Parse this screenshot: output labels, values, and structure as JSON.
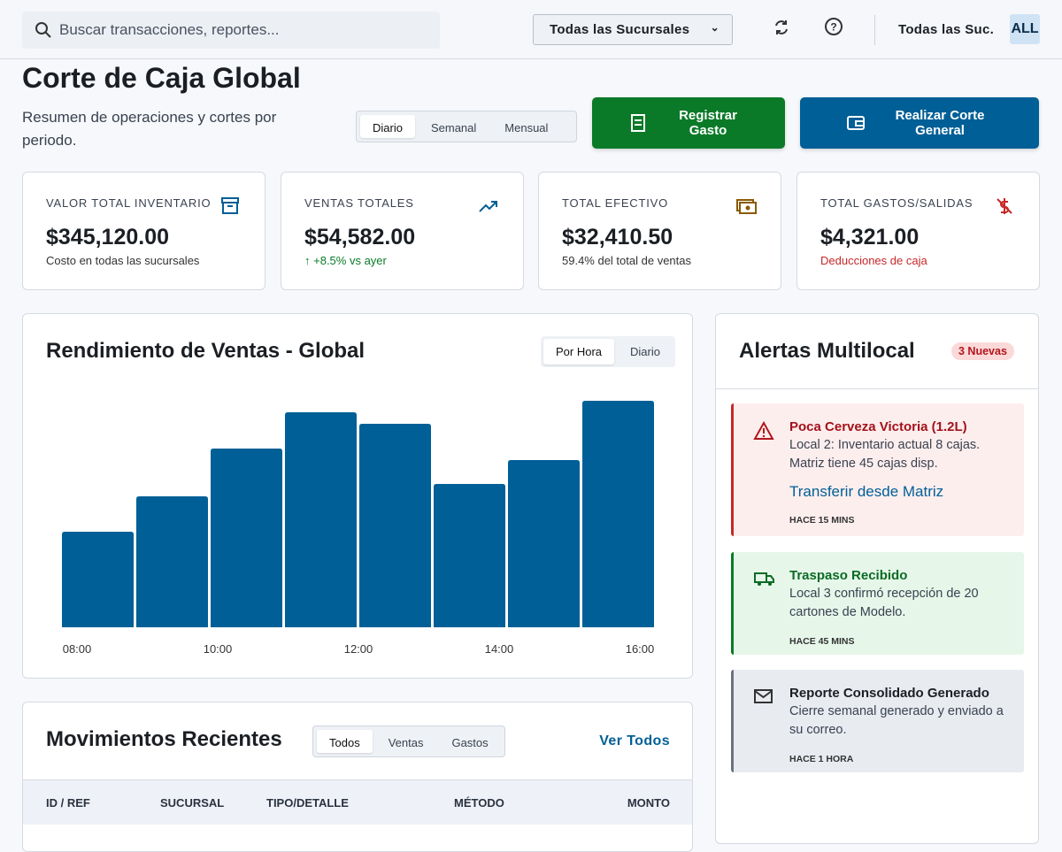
{
  "header": {
    "search_placeholder": "Buscar transacciones, reportes...",
    "branch_select": "Todas las Sucursales",
    "user_branch": "Todas las Suc.",
    "user_badge": "ALL"
  },
  "page": {
    "title": "Corte de Caja Global",
    "subtitle": "Resumen de operaciones y cortes por periodo.",
    "period_tabs": [
      "Diario",
      "Semanal",
      "Mensual"
    ],
    "buttons": [
      "Registrar Gasto",
      "Realizar Corte General"
    ]
  },
  "kpis": [
    {
      "label": "VALOR TOTAL INVENTARIO",
      "value": "$345,120.00",
      "note": "Costo en todas las sucursales"
    },
    {
      "label": "VENTAS TOTALES",
      "value": "$54,582.00",
      "note": "+8.5% vs ayer"
    },
    {
      "label": "TOTAL EFECTIVO",
      "value": "$32,410.50",
      "note": "59.4% del total de ventas"
    },
    {
      "label": "TOTAL GASTOS/SALIDAS",
      "value": "$4,321.00",
      "note": "Deducciones de caja"
    }
  ],
  "sales_card": {
    "tabs": [
      "Por Hora",
      "Diario"
    ]
  },
  "chart_data": {
    "type": "bar",
    "title": "Rendimiento de Ventas - Global",
    "values": [
      108,
      148,
      202,
      243,
      230,
      162,
      189,
      256
    ],
    "x_labels": [
      "08:00",
      "10:00",
      "12:00",
      "14:00",
      "16:00"
    ],
    "color": "#005f96"
  },
  "alerts": {
    "title": "Alertas Multilocal",
    "badge": "3 Nuevas",
    "items": [
      {
        "title": "Poca Cerveza Victoria (1.2L)",
        "body": "Local 2: Inventario actual 8 cajas. Matriz tiene 45 cajas disp.",
        "link": "Transferir desde Matriz",
        "time": "HACE 15 MINS"
      },
      {
        "title": "Traspaso Recibido",
        "body": "Local 3 confirmó recepción de 20 cartones de Modelo.",
        "time": "HACE 45 MINS"
      },
      {
        "title": "Reporte Consolidado Generado",
        "body": "Cierre semanal generado y enviado a su correo.",
        "time": "HACE 1 HORA"
      }
    ]
  },
  "movements": {
    "title": "Movimientos Recientes",
    "tabs": [
      "Todos",
      "Ventas",
      "Gastos"
    ],
    "link": "Ver Todos",
    "columns": [
      "ID / REF",
      "SUCURSAL",
      "TIPO/DETALLE",
      "MÉTODO",
      "MONTO"
    ]
  }
}
